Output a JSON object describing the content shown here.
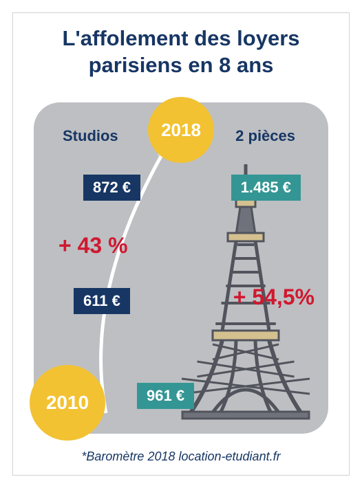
{
  "title": "L'affolement des loyers parisiens en 8 ans",
  "title_color": "#173664",
  "panel_bg": "#bdbfc2",
  "categories": {
    "left": {
      "label": "Studios",
      "color": "#173664"
    },
    "right": {
      "label": "2 pièces",
      "color": "#173664"
    }
  },
  "years": {
    "end": {
      "label": "2018",
      "bg": "#f2c233",
      "text_color": "#ffffff",
      "size": 96
    },
    "start": {
      "label": "2010",
      "bg": "#f2c233",
      "text_color": "#ffffff",
      "size": 110
    }
  },
  "prices": {
    "studios_end": {
      "text": "872 €",
      "bg": "#173664"
    },
    "studios_start": {
      "text": "611 €",
      "bg": "#173664"
    },
    "two_end": {
      "text": "1.485 €",
      "bg": "#339694"
    },
    "two_start": {
      "text": "961 €",
      "bg": "#339694"
    }
  },
  "pct": {
    "studios": {
      "text": "+ 43 %",
      "color": "#d01830"
    },
    "two": {
      "text": "+ 54,5%",
      "color": "#d01830"
    }
  },
  "footnote": {
    "text": "*Baromètre 2018 location-etudiant.fr",
    "color": "#173664"
  },
  "arrow_color": "#ffffff",
  "eiffel": {
    "stroke": "#4a4c55",
    "fill": "#6a6c76",
    "accent": "#d7c28b"
  }
}
